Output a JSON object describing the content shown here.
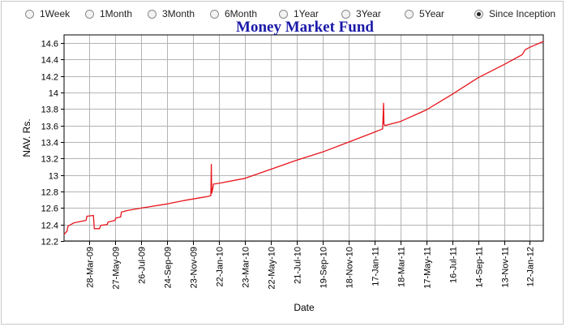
{
  "range_options": [
    {
      "label": "1Week",
      "selected": false
    },
    {
      "label": "1Month",
      "selected": false
    },
    {
      "label": "3Month",
      "selected": false
    },
    {
      "label": "6Month",
      "selected": false
    },
    {
      "label": "1Year",
      "selected": false
    },
    {
      "label": "3Year",
      "selected": false
    },
    {
      "label": "5Year",
      "selected": false
    },
    {
      "label": "Since Inception",
      "selected": true
    }
  ],
  "chart_data": {
    "type": "line",
    "title": "Money Market Fund",
    "xlabel": "Date",
    "ylabel": "NAV. Rs.",
    "ylim": [
      12.2,
      14.7
    ],
    "y_ticks": [
      12.2,
      12.4,
      12.6,
      12.8,
      13,
      13.2,
      13.4,
      13.6,
      13.8,
      14,
      14.2,
      14.4,
      14.6
    ],
    "y_tick_labels": [
      "12.2",
      "12.4",
      "12.6",
      "12.8",
      "13",
      "13.2",
      "13.4",
      "13.6",
      "13.8",
      "14",
      "14.2",
      "14.4",
      "14.6"
    ],
    "xlim": [
      "2009-01-28",
      "2012-02-12"
    ],
    "x_ticks": [
      "2009-03-28",
      "2009-05-27",
      "2009-07-26",
      "2009-09-24",
      "2009-11-23",
      "2010-01-22",
      "2010-03-23",
      "2010-05-22",
      "2010-07-21",
      "2010-09-19",
      "2010-11-18",
      "2011-01-17",
      "2011-03-18",
      "2011-05-17",
      "2011-07-16",
      "2011-09-14",
      "2011-11-13",
      "2012-01-12"
    ],
    "x_tick_labels": [
      "28-Mar-09",
      "27-May-09",
      "26-Jul-09",
      "24-Sep-09",
      "23-Nov-09",
      "22-Jan-10",
      "23-Mar-10",
      "22-May-10",
      "21-Jul-10",
      "19-Sep-10",
      "18-Nov-10",
      "17-Jan-11",
      "18-Mar-11",
      "17-May-11",
      "16-Jul-11",
      "14-Sep-11",
      "13-Nov-11",
      "12-Jan-12"
    ],
    "grid": true,
    "series": [
      {
        "color": "#e8141b",
        "points": [
          [
            "2009-01-28",
            12.28
          ],
          [
            "2009-02-04",
            12.32
          ],
          [
            "2009-02-06",
            12.38
          ],
          [
            "2009-02-20",
            12.42
          ],
          [
            "2009-03-10",
            12.44
          ],
          [
            "2009-03-20",
            12.45
          ],
          [
            "2009-03-22",
            12.5
          ],
          [
            "2009-04-06",
            12.51
          ],
          [
            "2009-04-08",
            12.35
          ],
          [
            "2009-04-20",
            12.35
          ],
          [
            "2009-04-23",
            12.39
          ],
          [
            "2009-05-08",
            12.4
          ],
          [
            "2009-05-10",
            12.43
          ],
          [
            "2009-05-26",
            12.45
          ],
          [
            "2009-05-28",
            12.48
          ],
          [
            "2009-06-08",
            12.49
          ],
          [
            "2009-06-10",
            12.55
          ],
          [
            "2009-06-24",
            12.57
          ],
          [
            "2009-07-26",
            12.6
          ],
          [
            "2009-09-24",
            12.65
          ],
          [
            "2009-11-01",
            12.69
          ],
          [
            "2009-11-23",
            12.71
          ],
          [
            "2009-12-27",
            12.74
          ],
          [
            "2010-01-03",
            12.75
          ],
          [
            "2010-01-04",
            13.13
          ],
          [
            "2010-01-05",
            12.78
          ],
          [
            "2010-01-08",
            12.85
          ],
          [
            "2010-01-09",
            12.89
          ],
          [
            "2010-01-22",
            12.9
          ],
          [
            "2010-03-23",
            12.96
          ],
          [
            "2010-05-22",
            13.07
          ],
          [
            "2010-07-21",
            13.18
          ],
          [
            "2010-09-19",
            13.28
          ],
          [
            "2010-11-18",
            13.4
          ],
          [
            "2011-01-17",
            13.52
          ],
          [
            "2011-02-05",
            13.56
          ],
          [
            "2011-02-07",
            13.87
          ],
          [
            "2011-02-08",
            13.62
          ],
          [
            "2011-02-10",
            13.6
          ],
          [
            "2011-03-18",
            13.65
          ],
          [
            "2011-05-17",
            13.79
          ],
          [
            "2011-07-16",
            13.98
          ],
          [
            "2011-09-14",
            14.18
          ],
          [
            "2011-11-13",
            14.34
          ],
          [
            "2011-12-25",
            14.46
          ],
          [
            "2012-01-01",
            14.52
          ],
          [
            "2012-01-12",
            14.55
          ],
          [
            "2012-02-12",
            14.62
          ]
        ]
      }
    ]
  }
}
